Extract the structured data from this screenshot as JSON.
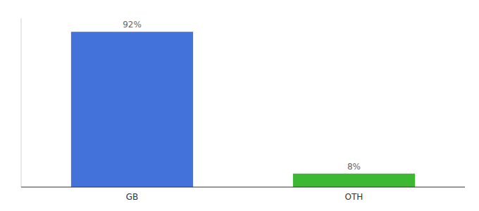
{
  "chart_data": {
    "type": "bar",
    "categories": [
      "GB",
      "OTH"
    ],
    "values": [
      92,
      8
    ],
    "value_labels": [
      "92%",
      "8%"
    ],
    "colors": [
      "#4472db",
      "#3cb832"
    ],
    "ylim": [
      0,
      100
    ],
    "grid": false,
    "data_labels": true,
    "tick_labels": "x"
  }
}
